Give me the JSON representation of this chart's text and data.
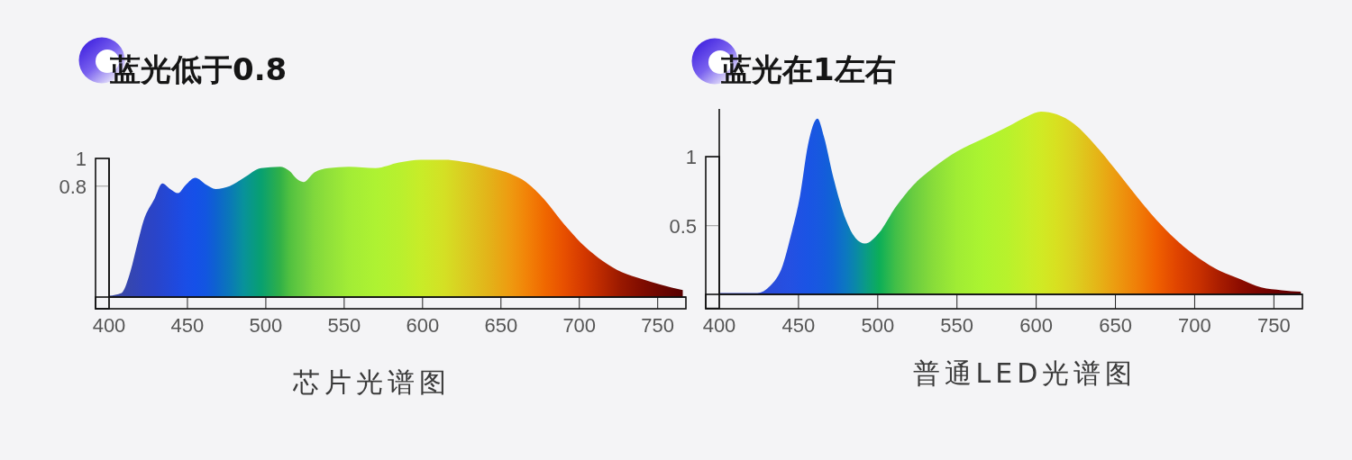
{
  "chart_data": [
    {
      "type": "area",
      "title": "蓝光低于0.8",
      "xlabel": "芯片光谱图",
      "x": [
        400,
        408,
        413,
        418,
        422,
        429,
        434,
        439,
        444,
        449,
        455,
        462,
        468,
        477,
        486,
        497,
        509,
        515,
        520,
        524,
        531,
        540,
        553,
        570,
        585,
        599,
        614,
        629,
        644,
        656,
        666,
        678,
        690,
        703,
        715,
        727,
        740,
        752,
        766
      ],
      "values": [
        0.01,
        0.03,
        0.16,
        0.38,
        0.55,
        0.71,
        0.82,
        0.78,
        0.75,
        0.81,
        0.86,
        0.81,
        0.78,
        0.8,
        0.86,
        0.93,
        0.94,
        0.91,
        0.85,
        0.83,
        0.9,
        0.93,
        0.94,
        0.93,
        0.97,
        0.99,
        0.99,
        0.97,
        0.93,
        0.89,
        0.83,
        0.7,
        0.53,
        0.37,
        0.26,
        0.18,
        0.13,
        0.09,
        0.05
      ],
      "colors": [
        "#3a4a9a",
        "#3a48a8",
        "#3546b0",
        "#3245b8",
        "#2e44c0",
        "#2a44c8",
        "#2646d0",
        "#2248d8",
        "#1e4ae0",
        "#1a4ee6",
        "#1550e8",
        "#1256e0",
        "#0e62d0",
        "#0a78b8",
        "#08929a",
        "#08a070",
        "#30b048",
        "#50c040",
        "#60c840",
        "#6ccc40",
        "#80d83c",
        "#90e03a",
        "#a2ec36",
        "#aef232",
        "#b8f02e",
        "#c8ec28",
        "#d4e024",
        "#dcc820",
        "#e4b018",
        "#ee9a10",
        "#f28408",
        "#f06800",
        "#e85000",
        "#d43800",
        "#b82800",
        "#981800",
        "#800c00",
        "#6c0600",
        "#580000"
      ],
      "xlim": [
        400,
        768
      ],
      "xticks": [
        400,
        450,
        500,
        550,
        600,
        650,
        700,
        750
      ],
      "ylim": [
        0,
        1
      ],
      "yticks": [
        0.8,
        1
      ]
    },
    {
      "type": "area",
      "title": "蓝光在1左右",
      "xlabel": "普通LED光谱图",
      "x": [
        400,
        424,
        432,
        440,
        445,
        451,
        456,
        462,
        466,
        472,
        480,
        486,
        492,
        501,
        511,
        522,
        535,
        550,
        566,
        582,
        595,
        603,
        613,
        624,
        637,
        650,
        663,
        676,
        689,
        703,
        716,
        729,
        742,
        755,
        767
      ],
      "values": [
        0.01,
        0.01,
        0.06,
        0.21,
        0.42,
        0.72,
        1.09,
        1.28,
        1.15,
        0.85,
        0.54,
        0.41,
        0.37,
        0.45,
        0.63,
        0.79,
        0.92,
        1.04,
        1.13,
        1.22,
        1.3,
        1.33,
        1.31,
        1.24,
        1.09,
        0.91,
        0.72,
        0.54,
        0.39,
        0.26,
        0.17,
        0.11,
        0.05,
        0.03,
        0.02
      ],
      "colors": [
        "#3040c0",
        "#2c48d0",
        "#2a4cd8",
        "#264ee0",
        "#2450e2",
        "#1e52e4",
        "#1a54e4",
        "#1858e0",
        "#145cdc",
        "#1064d4",
        "#0c78c0",
        "#0a88a8",
        "#0a9a88",
        "#0cae58",
        "#40be48",
        "#68cc40",
        "#88dc3a",
        "#a0ec34",
        "#acf430",
        "#b8f22c",
        "#c8ee28",
        "#d0ea24",
        "#d8e020",
        "#dcd020",
        "#e4b818",
        "#ec9c10",
        "#f08008",
        "#f06000",
        "#e04400",
        "#c83000",
        "#a81c00",
        "#8c0c00",
        "#780400",
        "#680000",
        "#600000"
      ],
      "xlim": [
        400,
        768
      ],
      "xticks": [
        400,
        450,
        500,
        550,
        600,
        650,
        700,
        750
      ],
      "ylim": [
        0,
        1.35
      ],
      "yticks": [
        0.5,
        1
      ]
    }
  ]
}
